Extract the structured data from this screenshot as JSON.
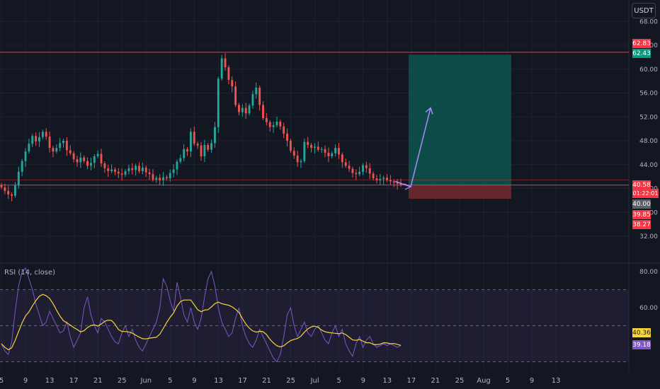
{
  "currency_button": "USDT",
  "rsi_indicator_label": "RSI (14, close)",
  "colors": {
    "background": "#131722",
    "bull_candle": "#26a69a",
    "bear_candle": "#ef5350",
    "level_line": "#f23645",
    "target_zone": "#0b5e55",
    "stop_zone": "#7a2a2e",
    "arrow": "#a78bfa",
    "rsi_line": "#7e57c2",
    "rsi_ma": "#f7d53b"
  },
  "price_axis": {
    "ticks": [
      "68.00",
      "64.00",
      "60.00",
      "56.00",
      "52.00",
      "48.00",
      "44.00",
      "40.00",
      "36.00",
      "32.00"
    ]
  },
  "price_tags": [
    {
      "label": "62.83",
      "color": "#f23645"
    },
    {
      "label": "62.43",
      "color": "#089981"
    },
    {
      "label": "40.58",
      "color": "#f23645"
    },
    {
      "label": "01:22:01",
      "color": "#f23645"
    },
    {
      "label": "40.00",
      "color": "#5d606b"
    },
    {
      "label": "39.85",
      "color": "#f23645"
    },
    {
      "label": "38.27",
      "color": "#f23645"
    }
  ],
  "rsi_axis": {
    "ticks": [
      "80.00",
      "60.00"
    ],
    "tags": [
      {
        "label": "40.36",
        "color": "#f7d53b",
        "text_color": "#131722"
      },
      {
        "label": "39.18",
        "color": "#7e57c2",
        "text_color": "#ffffff"
      }
    ]
  },
  "time_axis": {
    "labels": [
      "5",
      "9",
      "13",
      "17",
      "21",
      "25",
      "Jun",
      "5",
      "9",
      "13",
      "17",
      "21",
      "25",
      "Jul",
      "5",
      "9",
      "13",
      "17",
      "21",
      "25",
      "Aug",
      "5",
      "9",
      "13"
    ]
  },
  "chart_data": {
    "type": "candlestick",
    "price_axis_range": [
      32,
      68
    ],
    "levels": [
      62.83,
      40.58
    ],
    "position": {
      "entry": 40.58,
      "target": 62.43,
      "stop": 38.27
    },
    "close_series": [
      40.2,
      39.6,
      39.0,
      38.8,
      40.5,
      42.8,
      44.6,
      46.2,
      47.5,
      48.8,
      47.9,
      48.6,
      49.5,
      48.7,
      46.8,
      46.2,
      46.8,
      47.6,
      48.0,
      46.4,
      45.9,
      44.9,
      44.4,
      45.2,
      44.6,
      43.8,
      44.3,
      45.4,
      45.8,
      44.2,
      43.4,
      42.9,
      43.2,
      42.8,
      42.5,
      42.3,
      42.9,
      43.4,
      43.1,
      43.8,
      42.9,
      43.5,
      42.7,
      42.4,
      41.5,
      41.8,
      41.4,
      41.9,
      41.7,
      42.6,
      43.2,
      44.5,
      45.1,
      46.6,
      46.2,
      49.5,
      47.5,
      47.2,
      45.4,
      47.3,
      46.5,
      47.6,
      50.3,
      58.4,
      61.8,
      60.3,
      58.2,
      57.1,
      54.0,
      52.8,
      53.5,
      52.6,
      53.9,
      55.8,
      56.9,
      54.0,
      51.8,
      51.1,
      50.3,
      50.6,
      51.2,
      50.4,
      49.2,
      48.0,
      46.3,
      45.5,
      44.4,
      44.6,
      47.8,
      47.3,
      46.8,
      47.0,
      46.5,
      46.6,
      46.0,
      45.4,
      45.9,
      46.8,
      45.7,
      44.4,
      43.8,
      43.3,
      42.6,
      42.4,
      42.8,
      43.9,
      43.4,
      42.5,
      41.7,
      41.4,
      41.6,
      41.8,
      41.4,
      41.2,
      41.0,
      40.8,
      40.6
    ],
    "rsi": {
      "period": 14,
      "axis_range": [
        20,
        85
      ],
      "band_upper": 70,
      "band_middle": 50,
      "band_lower": 30,
      "values": [
        40,
        36,
        34,
        41,
        58,
        72,
        80,
        82,
        76,
        70,
        62,
        56,
        50,
        52,
        58,
        54,
        50,
        46,
        47,
        52,
        44,
        38,
        42,
        46,
        60,
        66,
        56,
        50,
        46,
        54,
        52,
        48,
        44,
        41,
        40,
        46,
        50,
        44,
        48,
        42,
        38,
        36,
        40,
        44,
        48,
        52,
        60,
        76,
        72,
        64,
        58,
        74,
        66,
        56,
        52,
        60,
        52,
        48,
        54,
        66,
        76,
        80,
        72,
        60,
        52,
        48,
        44,
        46,
        54,
        60,
        50,
        44,
        40,
        38,
        42,
        48,
        44,
        40,
        36,
        32,
        30,
        34,
        44,
        56,
        60,
        50,
        44,
        48,
        52,
        46,
        44,
        48,
        50,
        46,
        42,
        40,
        46,
        50,
        44,
        48,
        40,
        36,
        33,
        40,
        44,
        38,
        42,
        44,
        40,
        38,
        39,
        40,
        39,
        40,
        39,
        38,
        39
      ],
      "last_rsi": 39.18,
      "last_ma": 40.36
    }
  }
}
